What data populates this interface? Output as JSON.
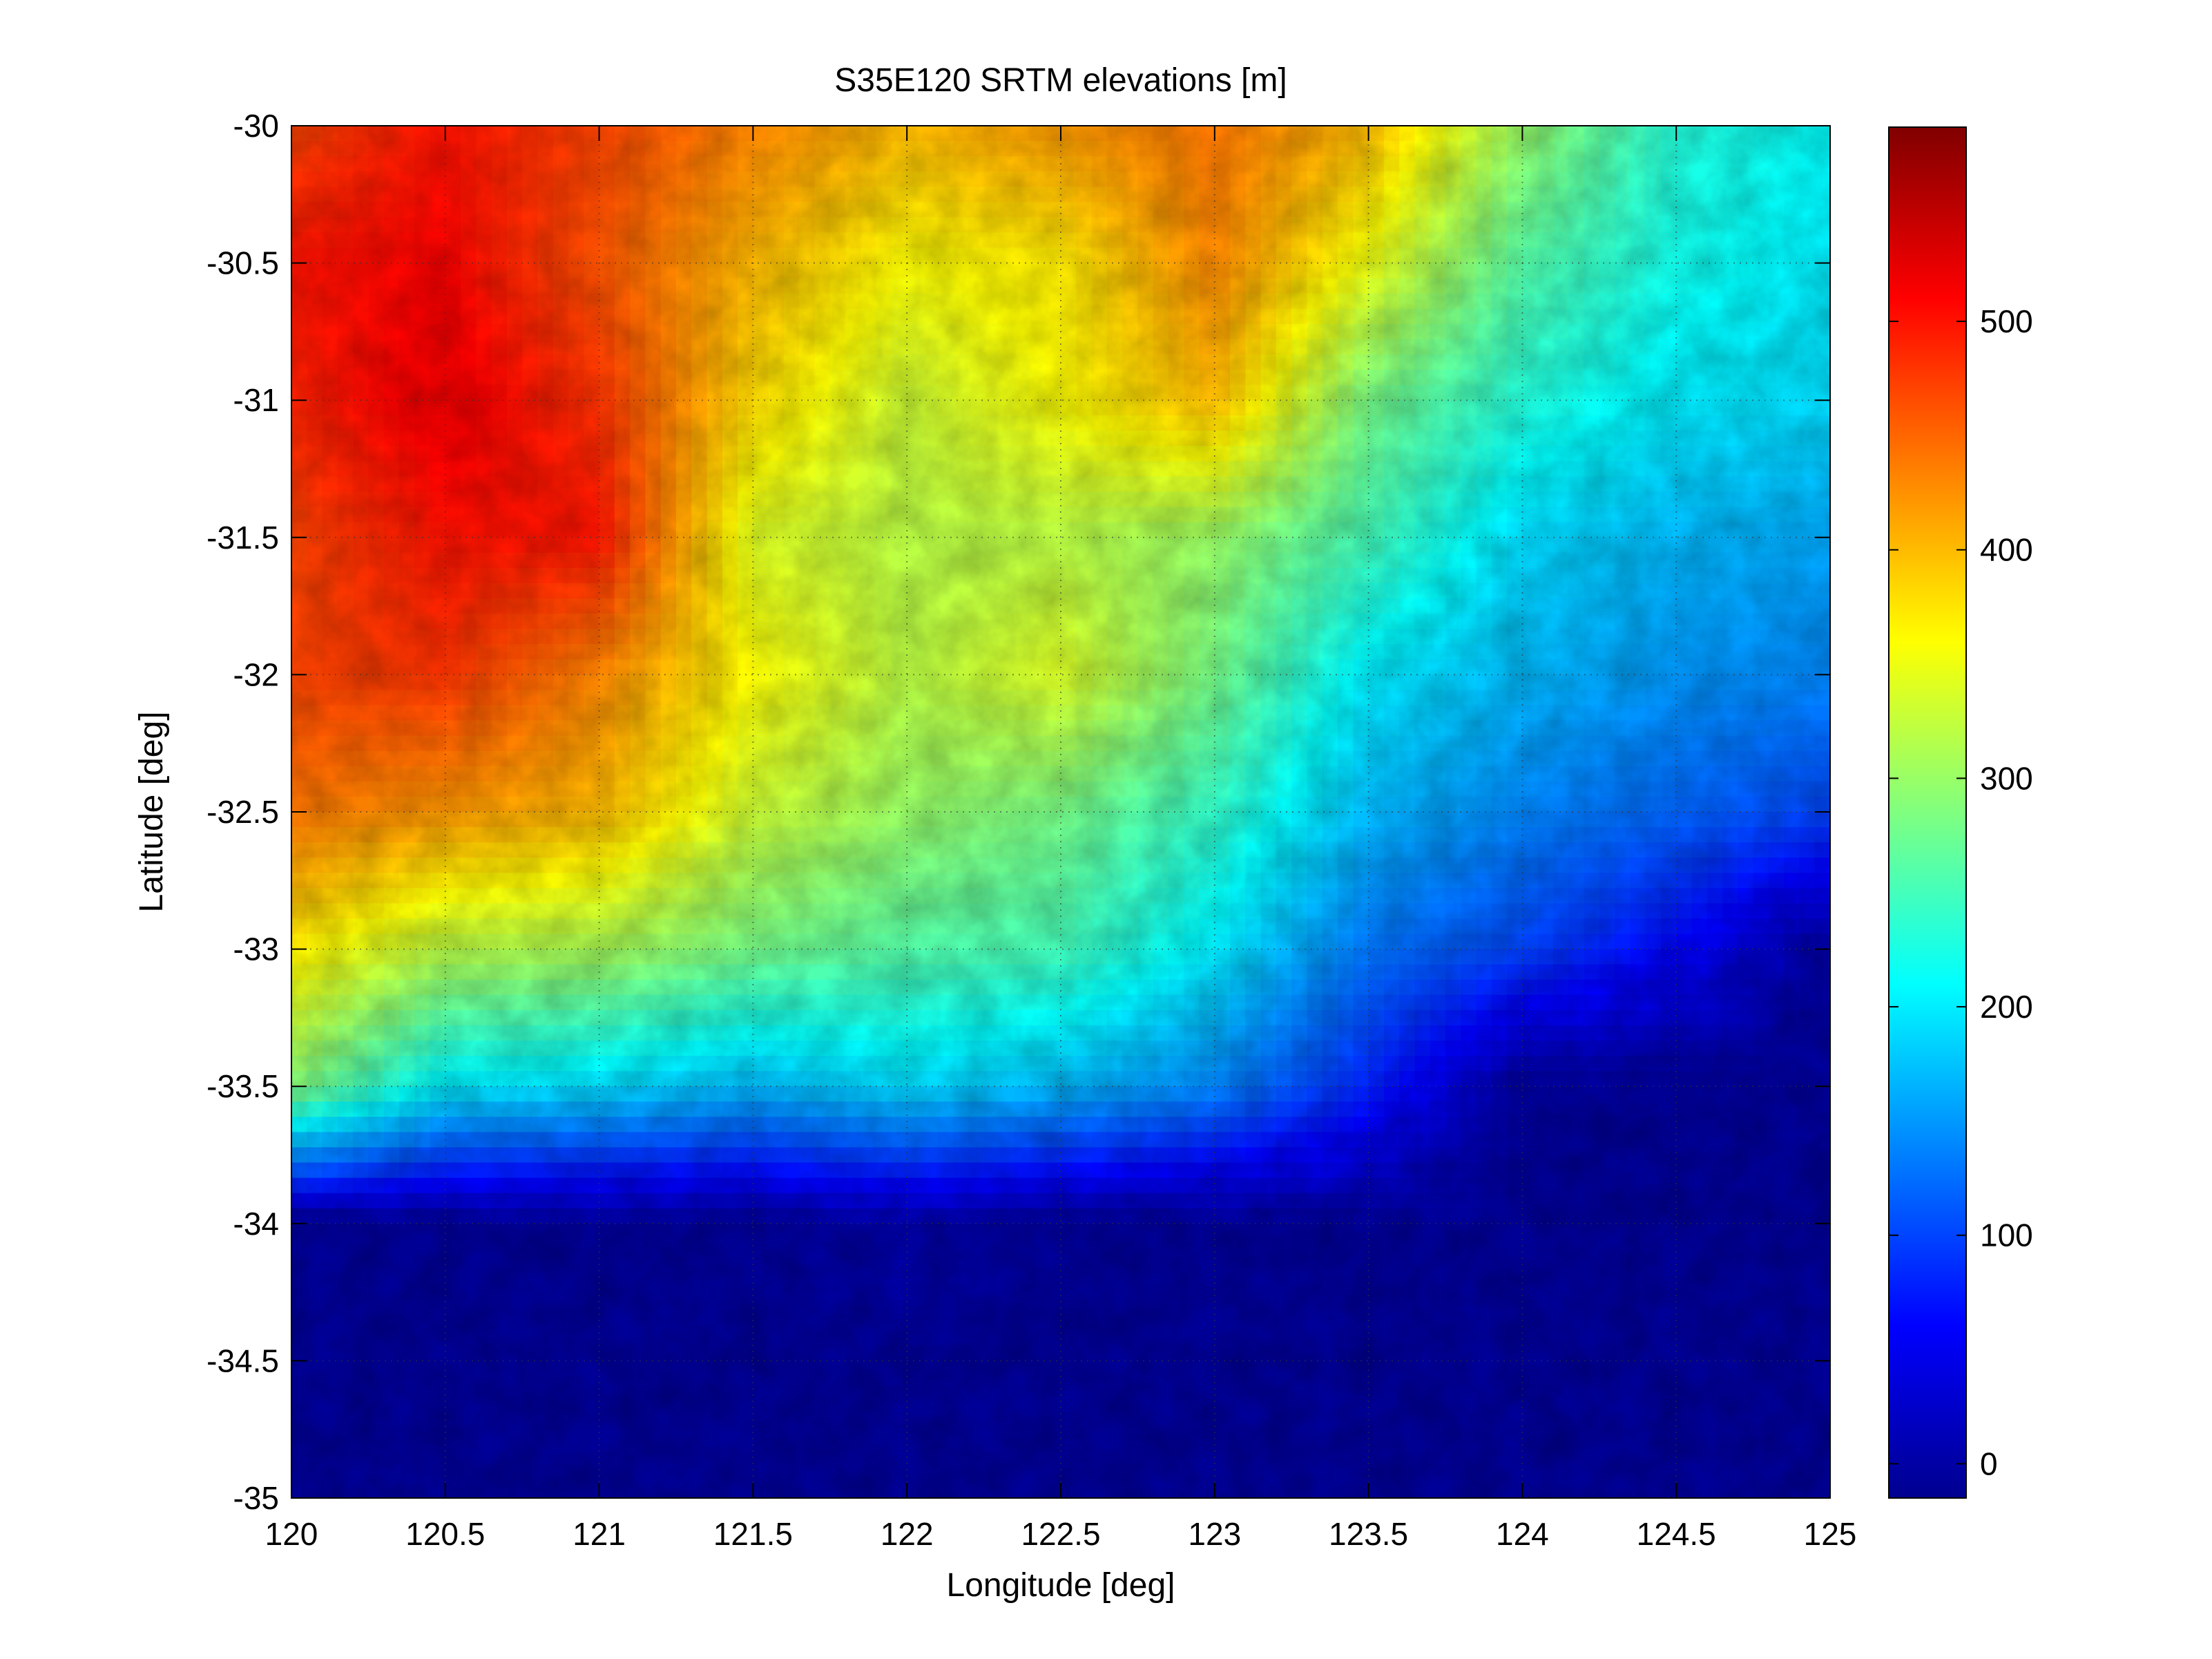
{
  "chart_data": {
    "type": "heatmap",
    "title": "S35E120 SRTM elevations [m]",
    "xlabel": "Longitude [deg]",
    "ylabel": "Latitude [deg]",
    "xlim": [
      120,
      125
    ],
    "ylim": [
      -35,
      -30
    ],
    "x_ticks": [
      120,
      120.5,
      121,
      121.5,
      122,
      122.5,
      123,
      123.5,
      124,
      124.5,
      125
    ],
    "x_tick_labels": [
      "120",
      "120.5",
      "121",
      "121.5",
      "122",
      "122.5",
      "123",
      "123.5",
      "124",
      "124.5",
      "125"
    ],
    "y_ticks": [
      -30,
      -30.5,
      -31,
      -31.5,
      -32,
      -32.5,
      -33,
      -33.5,
      -34,
      -34.5,
      -35
    ],
    "y_tick_labels": [
      "-30",
      "-30.5",
      "-31",
      "-31.5",
      "-32",
      "-32.5",
      "-33",
      "-33.5",
      "-34",
      "-34.5",
      "-35"
    ],
    "grid": true,
    "colormap": "jet",
    "colorbar": {
      "range": [
        -15,
        585
      ],
      "ticks": [
        0,
        100,
        200,
        300,
        400,
        500
      ],
      "tick_labels": [
        "0",
        "100",
        "200",
        "300",
        "400",
        "500"
      ],
      "placement": "right"
    },
    "elevation_grid": {
      "columns_lon": [
        120.0,
        120.5,
        121.0,
        121.5,
        122.0,
        122.5,
        123.0,
        123.5,
        124.0,
        124.5,
        125.0
      ],
      "rows_lat": [
        -30.0,
        -30.5,
        -31.0,
        -31.5,
        -32.0,
        -32.5,
        -33.0,
        -33.5,
        -34.0,
        -34.5,
        -35.0
      ],
      "values_m": [
        [
          470,
          500,
          470,
          430,
          400,
          420,
          440,
          400,
          300,
          230,
          210
        ],
        [
          500,
          510,
          460,
          400,
          360,
          370,
          430,
          350,
          260,
          220,
          200
        ],
        [
          490,
          520,
          480,
          380,
          330,
          360,
          400,
          280,
          230,
          200,
          190
        ],
        [
          470,
          500,
          500,
          340,
          320,
          320,
          300,
          250,
          190,
          170,
          160
        ],
        [
          470,
          480,
          430,
          360,
          320,
          340,
          280,
          200,
          170,
          150,
          140
        ],
        [
          440,
          420,
          400,
          330,
          300,
          280,
          240,
          170,
          140,
          120,
          100
        ],
        [
          370,
          320,
          310,
          280,
          260,
          250,
          200,
          130,
          100,
          60,
          0
        ],
        [
          290,
          200,
          190,
          170,
          190,
          170,
          140,
          80,
          0,
          0,
          0
        ],
        [
          0,
          0,
          0,
          0,
          10,
          0,
          0,
          0,
          0,
          0,
          0
        ],
        [
          0,
          0,
          0,
          0,
          0,
          0,
          0,
          0,
          0,
          0,
          0
        ],
        [
          0,
          0,
          0,
          0,
          0,
          0,
          0,
          0,
          0,
          0,
          0
        ]
      ]
    }
  }
}
